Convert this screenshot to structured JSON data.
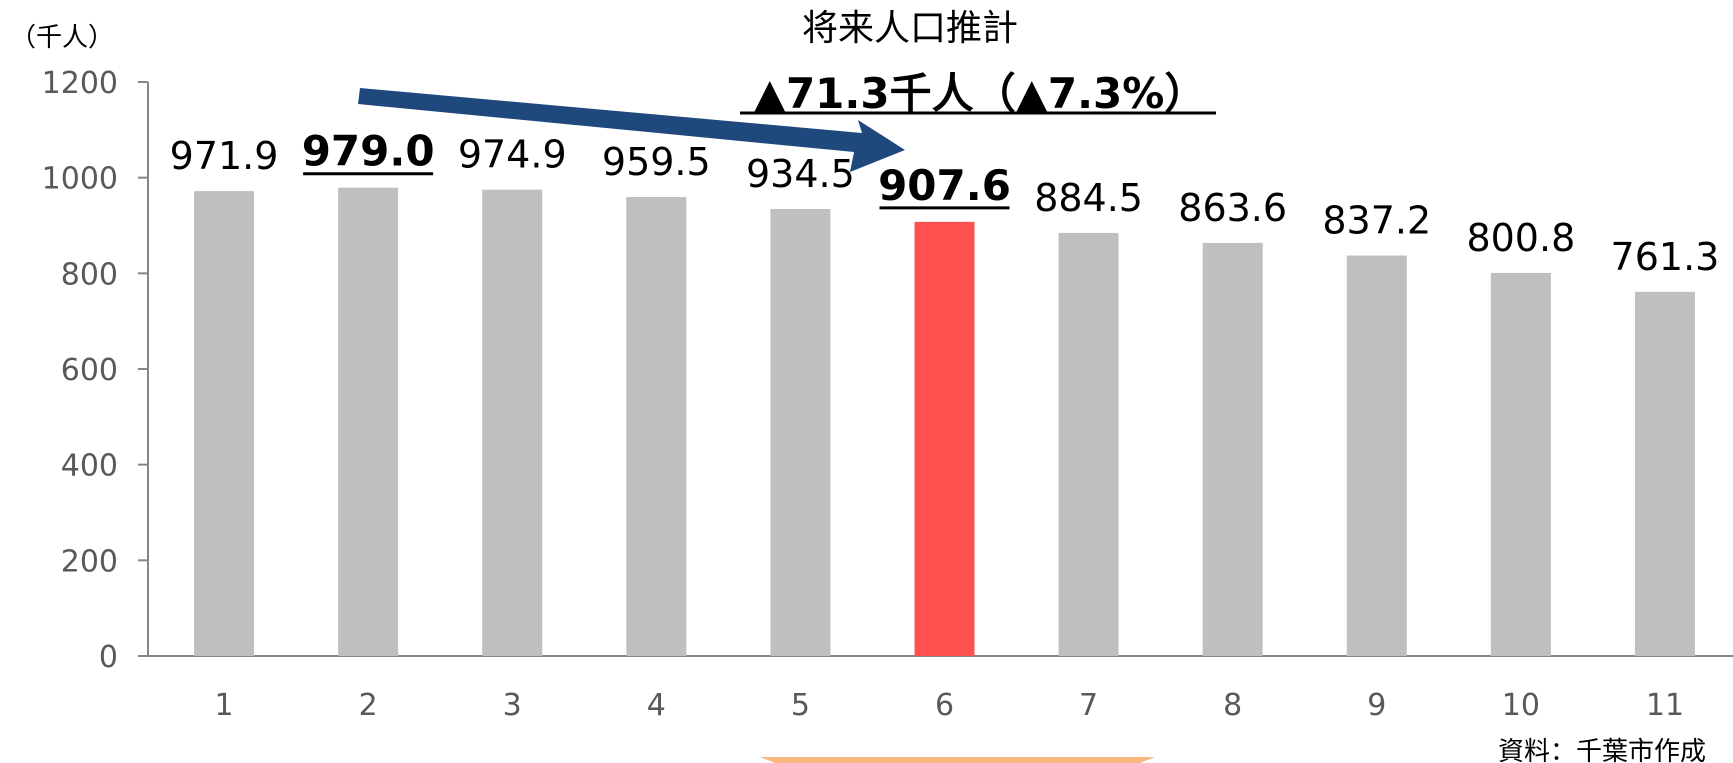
{
  "chart_data": {
    "type": "bar",
    "title": "将来人口推計",
    "y_unit": "（千人）",
    "categories": [
      "1",
      "2",
      "3",
      "4",
      "5",
      "6",
      "7",
      "8",
      "9",
      "10",
      "11"
    ],
    "values": [
      971.9,
      979.0,
      974.9,
      959.5,
      934.5,
      907.6,
      884.5,
      863.6,
      837.2,
      800.8,
      761.3
    ],
    "value_labels": [
      "971.9",
      "979.0",
      "974.9",
      "959.5",
      "934.5",
      "907.6",
      "884.5",
      "863.6",
      "837.2",
      "800.8",
      "761.3"
    ],
    "highlighted_labels": [
      1,
      5
    ],
    "highlighted_bar": 5,
    "ylim": [
      0,
      1200
    ],
    "yticks": [
      0,
      200,
      400,
      600,
      800,
      1000,
      1200
    ],
    "annotation": "▲71.3千人（▲7.3%）",
    "source": "資料：千葉市作成",
    "grid": false,
    "colors": {
      "bar": "#bfbfbf",
      "highlight_bar": "#ff5050",
      "arrow": "#1f497d",
      "footer_accent": "#f9b77f"
    }
  }
}
